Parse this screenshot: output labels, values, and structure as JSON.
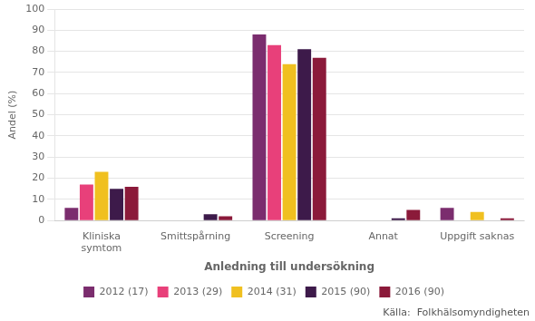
{
  "chart_data": {
    "type": "bar",
    "categories": [
      "Kliniska\nsymtom",
      "Smittspårning",
      "Screening",
      "Annat",
      "Uppgift saknas"
    ],
    "series": [
      {
        "name": "2012 (17)",
        "color": "#7B2D6E",
        "values": [
          6,
          0,
          88,
          0,
          6
        ]
      },
      {
        "name": "2013 (29)",
        "color": "#E8407A",
        "values": [
          17,
          0,
          83,
          0,
          0
        ]
      },
      {
        "name": "2014 (31)",
        "color": "#F0C020",
        "values": [
          23,
          0,
          74,
          0,
          4
        ]
      },
      {
        "name": "2015 (90)",
        "color": "#3D1A4A",
        "values": [
          15,
          3,
          81,
          1,
          0
        ]
      },
      {
        "name": "2016 (90)",
        "color": "#8B1A3A",
        "values": [
          16,
          2,
          77,
          5,
          1
        ]
      }
    ],
    "xlabel": "Anledning till undersökning",
    "ylabel": "Andel (%)",
    "ylim": [
      0,
      100
    ],
    "yticks": [
      0,
      10,
      20,
      30,
      40,
      50,
      60,
      70,
      80,
      90,
      100
    ],
    "grid": true,
    "legend": "bottom",
    "annotations": [
      "Källa:  Folkhälsomyndigheten"
    ]
  }
}
